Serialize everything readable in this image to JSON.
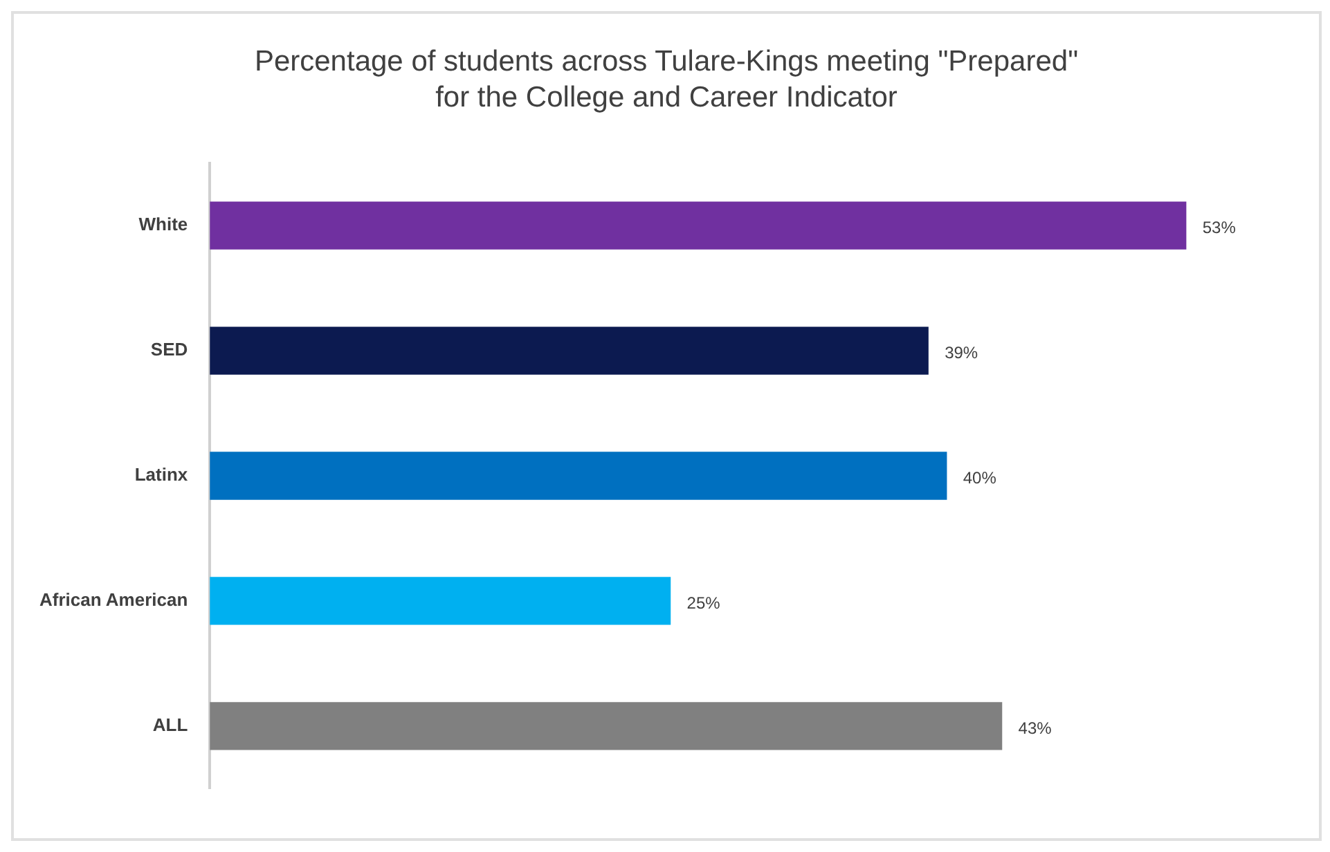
{
  "chart_data": {
    "type": "bar",
    "orientation": "horizontal",
    "title": "Percentage of students across Tulare-Kings meeting \"Prepared\" for the College and Career Indicator",
    "categories": [
      "White",
      "SED",
      "Latinx",
      "African American",
      "ALL"
    ],
    "values": [
      53,
      39,
      40,
      25,
      43
    ],
    "colors": [
      "#7030a0",
      "#0c1a50",
      "#0070c0",
      "#00b0f0",
      "#808080"
    ],
    "value_labels": [
      "53%",
      "39%",
      "40%",
      "25%",
      "43%"
    ],
    "legend": false
  }
}
